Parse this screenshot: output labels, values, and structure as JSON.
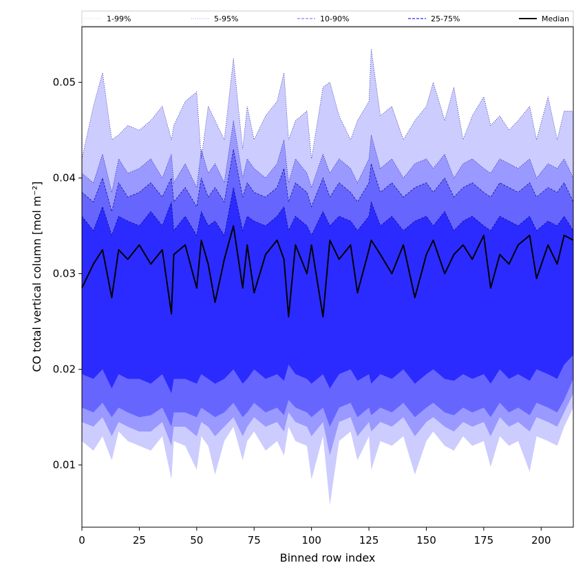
{
  "chart_data": {
    "type": "area",
    "xlabel": "Binned row index",
    "ylabel": "CO total vertical column [mol m⁻²]",
    "xlim": [
      0,
      214
    ],
    "ylim": [
      0.0035,
      0.0558
    ],
    "x_ticks": [
      0,
      25,
      50,
      75,
      100,
      125,
      150,
      175,
      200
    ],
    "y_ticks": [
      0.01,
      0.02,
      0.03,
      0.04,
      0.05
    ],
    "x_tick_labels": [
      "0",
      "25",
      "50",
      "75",
      "100",
      "125",
      "150",
      "175",
      "200"
    ],
    "y_tick_labels": [
      "0.01",
      "0.02",
      "0.03",
      "0.04",
      "0.05"
    ],
    "grid": false,
    "legend_position": "top",
    "legend": [
      {
        "label": "1-99%",
        "style": "dotted",
        "color": "#ccccff"
      },
      {
        "label": "5-95%",
        "style": "dotted",
        "color": "#9999ff"
      },
      {
        "label": "10-90%",
        "style": "dashed",
        "color": "#6666ff"
      },
      {
        "label": "25-75%",
        "style": "dashed",
        "color": "#2b2bff"
      },
      {
        "label": "Median",
        "style": "solid",
        "color": "#000000"
      }
    ],
    "colors": {
      "band_1_99": "#ccccff",
      "band_5_95": "#9999ff",
      "band_10_90": "#6666ff",
      "band_25_75": "#2b2bff",
      "median": "#000000",
      "edge_lines": "#00008b"
    },
    "x": [
      0,
      5,
      9,
      13,
      16,
      20,
      25,
      30,
      35,
      39,
      40,
      45,
      50,
      52,
      55,
      58,
      62,
      66,
      70,
      72,
      75,
      80,
      85,
      88,
      90,
      93,
      98,
      100,
      105,
      108,
      112,
      117,
      120,
      125,
      126,
      130,
      135,
      140,
      145,
      150,
      153,
      158,
      162,
      166,
      170,
      175,
      178,
      182,
      186,
      190,
      195,
      198,
      203,
      207,
      210,
      214
    ],
    "p1": [
      0.0125,
      0.0115,
      0.013,
      0.0105,
      0.0135,
      0.0125,
      0.012,
      0.0115,
      0.013,
      0.0085,
      0.0125,
      0.012,
      0.0095,
      0.013,
      0.012,
      0.009,
      0.0125,
      0.014,
      0.0105,
      0.0125,
      0.0135,
      0.0115,
      0.0125,
      0.011,
      0.014,
      0.0125,
      0.012,
      0.0085,
      0.013,
      0.0058,
      0.0125,
      0.0135,
      0.0105,
      0.013,
      0.0095,
      0.0125,
      0.012,
      0.013,
      0.009,
      0.0125,
      0.0135,
      0.012,
      0.0115,
      0.013,
      0.012,
      0.0125,
      0.0098,
      0.013,
      0.012,
      0.0125,
      0.0093,
      0.013,
      0.0125,
      0.012,
      0.014,
      0.016
    ],
    "p5": [
      0.0145,
      0.014,
      0.015,
      0.013,
      0.0145,
      0.014,
      0.0135,
      0.0135,
      0.0145,
      0.012,
      0.014,
      0.014,
      0.013,
      0.0145,
      0.014,
      0.013,
      0.014,
      0.015,
      0.013,
      0.014,
      0.015,
      0.014,
      0.0145,
      0.0135,
      0.0155,
      0.0145,
      0.014,
      0.013,
      0.0145,
      0.011,
      0.0145,
      0.015,
      0.013,
      0.0145,
      0.0135,
      0.0145,
      0.014,
      0.015,
      0.013,
      0.0145,
      0.015,
      0.014,
      0.0135,
      0.0145,
      0.014,
      0.0145,
      0.013,
      0.015,
      0.014,
      0.0145,
      0.0135,
      0.015,
      0.0145,
      0.014,
      0.0155,
      0.0175
    ],
    "p10": [
      0.016,
      0.0155,
      0.0165,
      0.015,
      0.016,
      0.0155,
      0.015,
      0.0152,
      0.016,
      0.014,
      0.0155,
      0.0155,
      0.015,
      0.016,
      0.0155,
      0.015,
      0.0155,
      0.0165,
      0.015,
      0.0155,
      0.0165,
      0.0155,
      0.016,
      0.0152,
      0.0168,
      0.016,
      0.0155,
      0.015,
      0.016,
      0.014,
      0.016,
      0.0165,
      0.015,
      0.016,
      0.0152,
      0.016,
      0.0155,
      0.0165,
      0.015,
      0.016,
      0.0165,
      0.0155,
      0.0152,
      0.016,
      0.0155,
      0.016,
      0.015,
      0.0165,
      0.0155,
      0.016,
      0.0152,
      0.0165,
      0.016,
      0.0155,
      0.0168,
      0.019
    ],
    "p25": [
      0.0195,
      0.019,
      0.02,
      0.018,
      0.0195,
      0.019,
      0.019,
      0.0185,
      0.0195,
      0.0175,
      0.019,
      0.019,
      0.0185,
      0.0195,
      0.019,
      0.0185,
      0.019,
      0.02,
      0.0185,
      0.019,
      0.02,
      0.019,
      0.0195,
      0.0188,
      0.0205,
      0.0195,
      0.019,
      0.0185,
      0.0195,
      0.018,
      0.0195,
      0.02,
      0.0188,
      0.0195,
      0.0185,
      0.0195,
      0.019,
      0.02,
      0.0185,
      0.0195,
      0.02,
      0.019,
      0.0188,
      0.0195,
      0.019,
      0.0195,
      0.0185,
      0.02,
      0.019,
      0.0195,
      0.0188,
      0.02,
      0.0195,
      0.019,
      0.0205,
      0.0215
    ],
    "p75": [
      0.036,
      0.0345,
      0.037,
      0.034,
      0.036,
      0.0355,
      0.035,
      0.0365,
      0.035,
      0.0375,
      0.0345,
      0.036,
      0.034,
      0.0365,
      0.035,
      0.0355,
      0.034,
      0.039,
      0.0345,
      0.036,
      0.0355,
      0.035,
      0.036,
      0.037,
      0.0345,
      0.036,
      0.035,
      0.034,
      0.0365,
      0.035,
      0.036,
      0.0355,
      0.0345,
      0.036,
      0.0375,
      0.035,
      0.036,
      0.0345,
      0.0355,
      0.036,
      0.035,
      0.0365,
      0.0345,
      0.0355,
      0.036,
      0.035,
      0.0345,
      0.036,
      0.0355,
      0.035,
      0.036,
      0.0345,
      0.0355,
      0.035,
      0.036,
      0.0345
    ],
    "p90": [
      0.0385,
      0.0375,
      0.04,
      0.0365,
      0.0395,
      0.038,
      0.0385,
      0.0395,
      0.038,
      0.04,
      0.0375,
      0.039,
      0.037,
      0.04,
      0.038,
      0.039,
      0.0375,
      0.043,
      0.038,
      0.0395,
      0.0385,
      0.038,
      0.039,
      0.041,
      0.0375,
      0.0395,
      0.0385,
      0.037,
      0.04,
      0.038,
      0.0395,
      0.0385,
      0.0375,
      0.0395,
      0.0415,
      0.0385,
      0.0395,
      0.038,
      0.039,
      0.0395,
      0.0385,
      0.04,
      0.038,
      0.039,
      0.0395,
      0.0385,
      0.038,
      0.0395,
      0.039,
      0.0385,
      0.0395,
      0.038,
      0.039,
      0.0385,
      0.0395,
      0.0375
    ],
    "p95": [
      0.0405,
      0.0395,
      0.0425,
      0.0385,
      0.042,
      0.0405,
      0.041,
      0.042,
      0.04,
      0.0425,
      0.0395,
      0.0415,
      0.039,
      0.043,
      0.0405,
      0.0415,
      0.0395,
      0.046,
      0.04,
      0.042,
      0.041,
      0.04,
      0.0415,
      0.044,
      0.0395,
      0.042,
      0.0405,
      0.039,
      0.0425,
      0.0405,
      0.042,
      0.041,
      0.0395,
      0.042,
      0.0445,
      0.041,
      0.042,
      0.04,
      0.0415,
      0.042,
      0.041,
      0.0425,
      0.04,
      0.0415,
      0.042,
      0.041,
      0.0405,
      0.042,
      0.0415,
      0.041,
      0.042,
      0.04,
      0.0415,
      0.041,
      0.042,
      0.04
    ],
    "p99": [
      0.042,
      0.0475,
      0.051,
      0.044,
      0.0445,
      0.0455,
      0.045,
      0.046,
      0.0475,
      0.044,
      0.0455,
      0.048,
      0.049,
      0.042,
      0.0475,
      0.046,
      0.044,
      0.0525,
      0.043,
      0.0475,
      0.044,
      0.0465,
      0.048,
      0.051,
      0.044,
      0.046,
      0.047,
      0.042,
      0.0495,
      0.05,
      0.0465,
      0.044,
      0.046,
      0.048,
      0.0535,
      0.0465,
      0.0475,
      0.044,
      0.046,
      0.0475,
      0.05,
      0.046,
      0.0495,
      0.044,
      0.0465,
      0.0485,
      0.0455,
      0.0465,
      0.045,
      0.046,
      0.0475,
      0.044,
      0.0485,
      0.044,
      0.047,
      0.047
    ],
    "median": [
      0.0285,
      0.031,
      0.0325,
      0.0275,
      0.0325,
      0.0315,
      0.033,
      0.031,
      0.0325,
      0.0258,
      0.032,
      0.033,
      0.0285,
      0.0335,
      0.031,
      0.027,
      0.0315,
      0.035,
      0.0285,
      0.033,
      0.028,
      0.032,
      0.0335,
      0.0315,
      0.0255,
      0.033,
      0.03,
      0.033,
      0.0255,
      0.0335,
      0.0315,
      0.033,
      0.028,
      0.0325,
      0.0335,
      0.032,
      0.03,
      0.033,
      0.0275,
      0.032,
      0.0335,
      0.03,
      0.032,
      0.033,
      0.0315,
      0.034,
      0.0285,
      0.032,
      0.031,
      0.033,
      0.034,
      0.0295,
      0.033,
      0.031,
      0.034,
      0.0335
    ]
  }
}
